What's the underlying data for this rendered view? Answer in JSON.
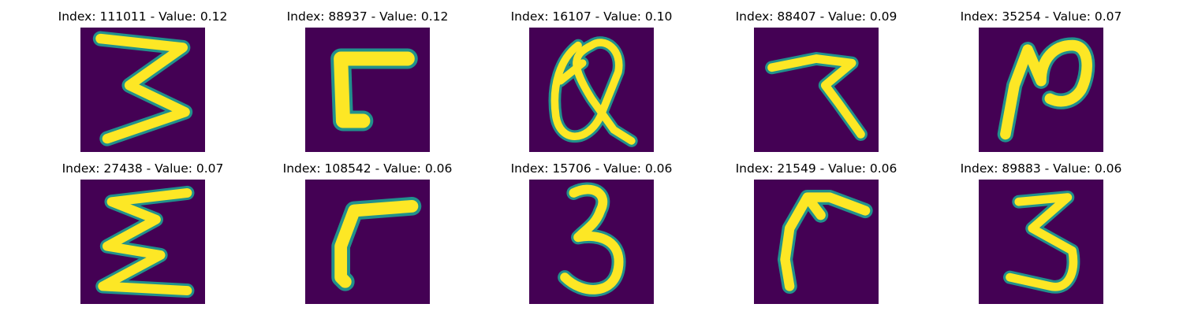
{
  "colors": {
    "background": "#440154",
    "stroke_mid": "#21918c",
    "stroke_high": "#fde725"
  },
  "panels": [
    {
      "title": "Index: 111011 - Value: 0.12",
      "glyph": "3"
    },
    {
      "title": "Index: 88937 - Value: 0.12",
      "glyph": "corner-bracket"
    },
    {
      "title": "Index: 16107 - Value: 0.10",
      "glyph": "looped-a"
    },
    {
      "title": "Index: 88407 - Value: 0.09",
      "glyph": "hooked-z"
    },
    {
      "title": "Index: 35254 - Value: 0.07",
      "glyph": "n"
    },
    {
      "title": "Index: 27438 - Value: 0.07",
      "glyph": "sigma"
    },
    {
      "title": "Index: 108542 - Value: 0.06",
      "glyph": "corner-bracket"
    },
    {
      "title": "Index: 15706 - Value: 0.06",
      "glyph": "3"
    },
    {
      "title": "Index: 21549 - Value: 0.06",
      "glyph": "hook"
    },
    {
      "title": "Index: 89883 - Value: 0.06",
      "glyph": "3"
    }
  ]
}
